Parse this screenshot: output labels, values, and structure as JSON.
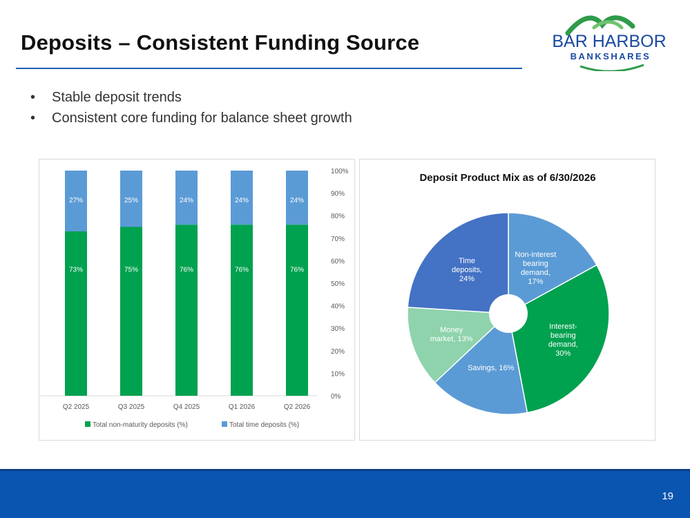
{
  "slide": {
    "title": "Deposits – Consistent Funding Source",
    "bullets": [
      "Stable deposit trends",
      "Consistent core funding for balance sheet growth"
    ],
    "page_number": "19"
  },
  "logo": {
    "line1": "BAR HARBOR",
    "line2": "BANKSHARES"
  },
  "colors": {
    "green": "#00a14f",
    "blue": "#5b9bd5",
    "dark_blue": "#4472c4",
    "mint": "#8fd3ad",
    "footer": "#0a55b0"
  },
  "chart_data": [
    {
      "type": "bar",
      "stacked": true,
      "categories": [
        "Q2 2025",
        "Q3 2025",
        "Q4 2025",
        "Q1 2026",
        "Q2 2026"
      ],
      "series": [
        {
          "name": "Total non-maturity deposits (%)",
          "values": [
            73,
            75,
            76,
            76,
            76
          ],
          "labels": [
            "73%",
            "75%",
            "76%",
            "76%",
            "76%"
          ],
          "color": "#00a14f"
        },
        {
          "name": "Total time deposits (%)",
          "values": [
            27,
            25,
            24,
            24,
            24
          ],
          "labels": [
            "27%",
            "25%",
            "24%",
            "24%",
            "24%"
          ],
          "color": "#5b9bd5"
        }
      ],
      "ylim": [
        0,
        100
      ],
      "yticks": [
        "0%",
        "10%",
        "20%",
        "30%",
        "40%",
        "50%",
        "60%",
        "70%",
        "80%",
        "90%",
        "100%"
      ],
      "y_axis_side": "right",
      "grid": false,
      "legend": "bottom"
    },
    {
      "type": "pie",
      "donut": true,
      "title": "Deposit Product Mix as of 6/30/2026",
      "slices": [
        {
          "label": [
            "Non-interest",
            "bearing",
            "demand,",
            "17%"
          ],
          "value": 17,
          "color": "#5b9bd5"
        },
        {
          "label": [
            "Interest-",
            "bearing",
            "demand,",
            "30%"
          ],
          "value": 30,
          "color": "#00a14f"
        },
        {
          "label": [
            "Savings, 16%"
          ],
          "value": 16,
          "color": "#5b9bd5"
        },
        {
          "label": [
            "Money",
            "market, 13%"
          ],
          "value": 13,
          "color": "#8fd3ad"
        },
        {
          "label": [
            "Time",
            "deposits,",
            "24%"
          ],
          "value": 24,
          "color": "#4472c4"
        }
      ]
    }
  ]
}
